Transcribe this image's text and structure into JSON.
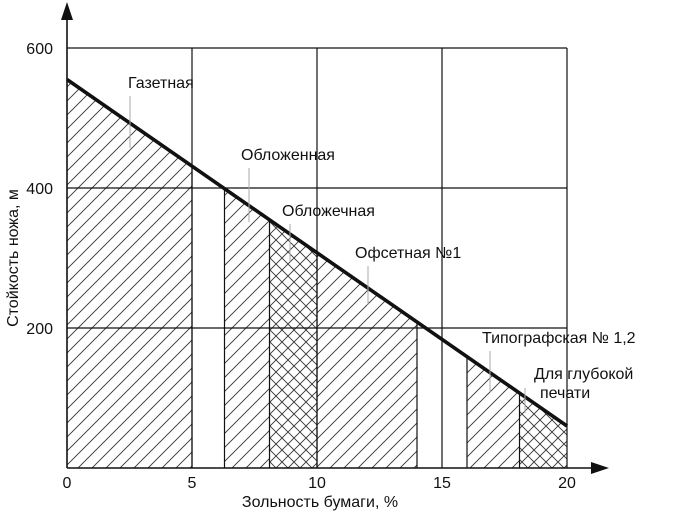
{
  "chart_data": {
    "type": "line",
    "xlabel": "Зольность бумаги, %",
    "ylabel": "Стойкость ножа, м",
    "xlim": [
      0,
      20
    ],
    "ylim": [
      0,
      600
    ],
    "x_ticks": [
      0,
      5,
      10,
      15,
      20
    ],
    "x_tick_labels": [
      "0",
      "5",
      "10",
      "15",
      "20"
    ],
    "y_ticks": [
      200,
      400,
      600
    ],
    "y_tick_labels": [
      "200",
      "400",
      "600"
    ],
    "grid": true,
    "series": [
      {
        "x": [
          0,
          20
        ],
        "y": [
          555,
          60
        ]
      }
    ],
    "regions": [
      {
        "label": "Газетная",
        "x_range": [
          0,
          5
        ],
        "hatch": "diagonal"
      },
      {
        "label": "Обложенная",
        "x_range": [
          6.3,
          8.1
        ],
        "hatch": "diagonal"
      },
      {
        "label": "Обложечная",
        "x_range": [
          8.1,
          10
        ],
        "hatch": "cross"
      },
      {
        "label": "Офсетная №1",
        "x_range": [
          10,
          14
        ],
        "hatch": "diagonal"
      },
      {
        "label": "Типографская № 1,2",
        "x_range": [
          16,
          18.1
        ],
        "hatch": "diagonal"
      },
      {
        "label": "Для глубокой печати",
        "x_range": [
          18.1,
          20
        ],
        "hatch": "cross"
      }
    ]
  }
}
